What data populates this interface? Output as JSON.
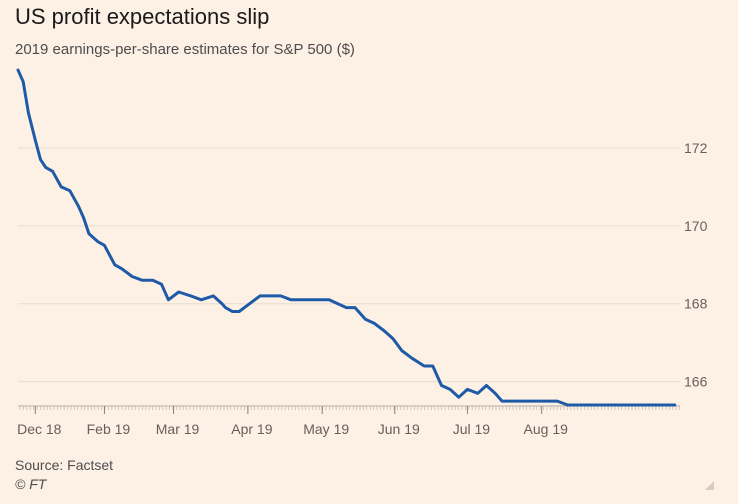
{
  "header": {
    "title": "US profit expectations slip",
    "subtitle": "2019 earnings-per-share estimates for S&P 500 ($)"
  },
  "footer": {
    "source": "Source: Factset",
    "credit": "© FT"
  },
  "colors": {
    "background": "#fdf1e6",
    "line": "#1f5aa6",
    "grid": "#e8dccf",
    "axis_text": "#66605c"
  },
  "chart_data": {
    "type": "line",
    "title": "US profit expectations slip",
    "subtitle": "2019 earnings-per-share estimates for S&P 500 ($)",
    "xlabel": "",
    "ylabel": "",
    "x_unit": "weeks since Dec 18 start",
    "ylim": [
      165.4,
      174.0
    ],
    "xlim": [
      0,
      38.3
    ],
    "y_ticks": [
      166,
      168,
      170,
      172
    ],
    "y_tick_labels": [
      "166",
      "168",
      "170",
      "172"
    ],
    "x_ticks": [
      1.0,
      5.0,
      9.0,
      13.3,
      17.6,
      21.8,
      26.0,
      30.3
    ],
    "x_tick_labels": [
      "Dec 18",
      "Feb 19",
      "Mar 19",
      "Apr 19",
      "May 19",
      "Jun 19",
      "Jul 19",
      "Aug 19"
    ],
    "grid": true,
    "legend": "none",
    "series": [
      {
        "name": "2019 EPS estimate",
        "x": [
          0.0,
          0.3,
          0.6,
          1.0,
          1.3,
          1.6,
          2.0,
          2.5,
          3.0,
          3.5,
          3.8,
          4.1,
          4.6,
          5.0,
          5.6,
          6.0,
          6.6,
          7.2,
          7.8,
          8.3,
          8.7,
          9.3,
          10.0,
          10.6,
          11.3,
          11.8,
          12.0,
          12.4,
          12.8,
          13.4,
          14.0,
          14.3,
          14.8,
          15.2,
          15.8,
          16.3,
          16.6,
          17.0,
          17.4,
          18.0,
          18.5,
          19.0,
          19.5,
          20.1,
          20.6,
          21.2,
          21.7,
          22.2,
          22.8,
          23.5,
          24.0,
          24.5,
          25.0,
          25.5,
          26.0,
          26.6,
          27.1,
          27.6,
          28.0,
          28.2,
          28.8,
          29.0,
          29.6,
          30.0,
          30.6,
          31.2,
          31.8,
          32.4,
          33.0,
          34.0,
          35.0,
          36.0,
          37.0,
          38.0
        ],
        "values": [
          174.0,
          173.7,
          172.9,
          172.2,
          171.7,
          171.5,
          171.4,
          171.0,
          170.9,
          170.5,
          170.2,
          169.8,
          169.6,
          169.5,
          169.0,
          168.9,
          168.7,
          168.6,
          168.6,
          168.5,
          168.1,
          168.3,
          168.2,
          168.1,
          168.2,
          168.0,
          167.9,
          167.8,
          167.8,
          168.0,
          168.2,
          168.2,
          168.2,
          168.2,
          168.1,
          168.1,
          168.1,
          168.1,
          168.1,
          168.1,
          168.0,
          167.9,
          167.9,
          167.6,
          167.5,
          167.3,
          167.1,
          166.8,
          166.6,
          166.4,
          166.4,
          165.9,
          165.8,
          165.6,
          165.8,
          165.7,
          165.9,
          165.7,
          165.5,
          165.5,
          165.5,
          165.5,
          165.5,
          165.5,
          165.5,
          165.5,
          165.4,
          165.4,
          165.4,
          165.4,
          165.4,
          165.4,
          165.4,
          165.4
        ]
      }
    ]
  }
}
